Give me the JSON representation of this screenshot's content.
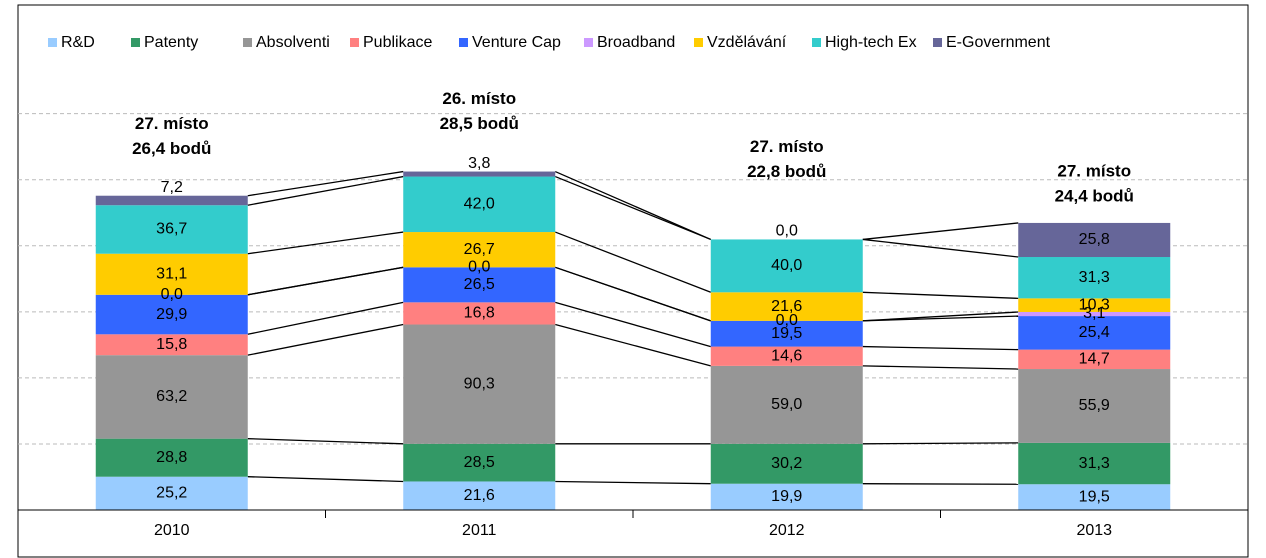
{
  "chart_data": {
    "type": "stacked_bar",
    "categories": [
      "2010",
      "2011",
      "2012",
      "2013"
    ],
    "annotations": [
      [
        "27. místo",
        "26,4 bodů"
      ],
      [
        "26. místo",
        "28,5 bodů"
      ],
      [
        "27. místo",
        "22,8 bodů"
      ],
      [
        "27. místo",
        "24,4 bodů"
      ]
    ],
    "ylim": [
      0,
      380
    ],
    "yticks": [
      50,
      100,
      150,
      200,
      250,
      300
    ],
    "grid": true,
    "series": [
      {
        "name": "R&D",
        "color": "#99ccff",
        "values": [
          25.2,
          21.6,
          19.9,
          19.5
        ],
        "value_labels": [
          "25,2",
          "21,6",
          "19,9",
          "19,5"
        ]
      },
      {
        "name": "Patenty",
        "color": "#339966",
        "values": [
          28.8,
          28.5,
          30.2,
          31.3
        ],
        "value_labels": [
          "28,8",
          "28,5",
          "30,2",
          "31,3"
        ]
      },
      {
        "name": "Absolventi",
        "color": "#969696",
        "values": [
          63.2,
          90.3,
          59.0,
          55.9
        ],
        "value_labels": [
          "63,2",
          "90,3",
          "59,0",
          "55,9"
        ]
      },
      {
        "name": "Publikace",
        "color": "#ff8080",
        "values": [
          15.8,
          16.8,
          14.6,
          14.7
        ],
        "value_labels": [
          "15,8",
          "16,8",
          "14,6",
          "14,7"
        ]
      },
      {
        "name": "Venture Cap",
        "color": "#3366ff",
        "values": [
          29.9,
          26.5,
          19.5,
          25.4
        ],
        "value_labels": [
          "29,9",
          "26,5",
          "19,5",
          "25,4"
        ]
      },
      {
        "name": "Broadband",
        "color": "#cc99ff",
        "values": [
          0.0,
          0.0,
          0.0,
          3.1
        ],
        "value_labels": [
          "0,0",
          "0,0",
          "0,0",
          "3,1"
        ]
      },
      {
        "name": "Vzdělávání",
        "color": "#ffcc00",
        "values": [
          31.1,
          26.7,
          21.6,
          10.3
        ],
        "value_labels": [
          "31,1",
          "26,7",
          "21,6",
          "10,3"
        ]
      },
      {
        "name": "High-tech Ex",
        "color": "#33cccc",
        "values": [
          36.7,
          42.0,
          40.0,
          31.3
        ],
        "value_labels": [
          "36,7",
          "42,0",
          "40,0",
          "31,3"
        ]
      },
      {
        "name": "E-Government",
        "color": "#666699",
        "values": [
          7.2,
          3.8,
          0.0,
          25.8
        ],
        "value_labels": [
          "7,2",
          "3,8",
          "0,0",
          "25,8"
        ]
      }
    ]
  }
}
